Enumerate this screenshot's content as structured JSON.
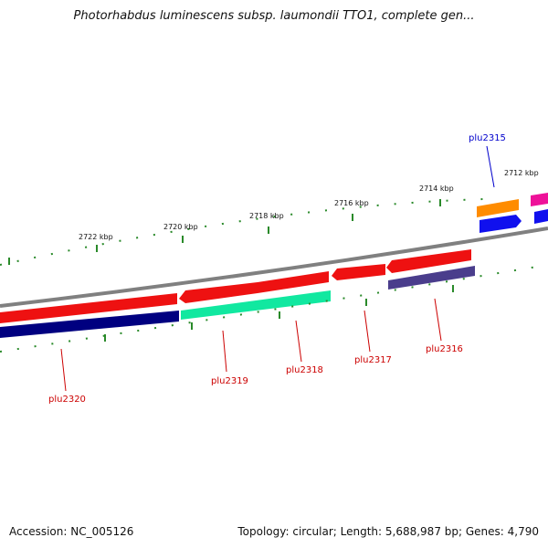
{
  "title": "Photorhabdus luminescens subsp. laumondii TTO1, complete gen...",
  "footer": {
    "accession": "Accession: NC_005126",
    "summary": "Topology: circular; Length: 5,688,987 bp; Genes: 4,790"
  },
  "scale_labels": [
    "2722 kbp",
    "2720 kbp",
    "2718 kbp",
    "2716 kbp",
    "2714 kbp",
    "2712 kbp"
  ],
  "genes": [
    {
      "name": "plu2320",
      "color": "#cc0000"
    },
    {
      "name": "plu2319",
      "color": "#cc0000"
    },
    {
      "name": "plu2318",
      "color": "#cc0000"
    },
    {
      "name": "plu2317",
      "color": "#cc0000"
    },
    {
      "name": "plu2316",
      "color": "#cc0000"
    },
    {
      "name": "plu2315",
      "color": "#0000cc"
    }
  ],
  "colors": {
    "backbone": "#808080",
    "tick": "#2a8a2a",
    "gene_red": "#ee1111",
    "cds_navy": "#000080",
    "cds_teal": "#11e8a0",
    "cds_purple": "#4a3d8c",
    "feature_orange": "#ff8c00",
    "feature_blue": "#1010ee",
    "feature_pink": "#ee1199"
  }
}
